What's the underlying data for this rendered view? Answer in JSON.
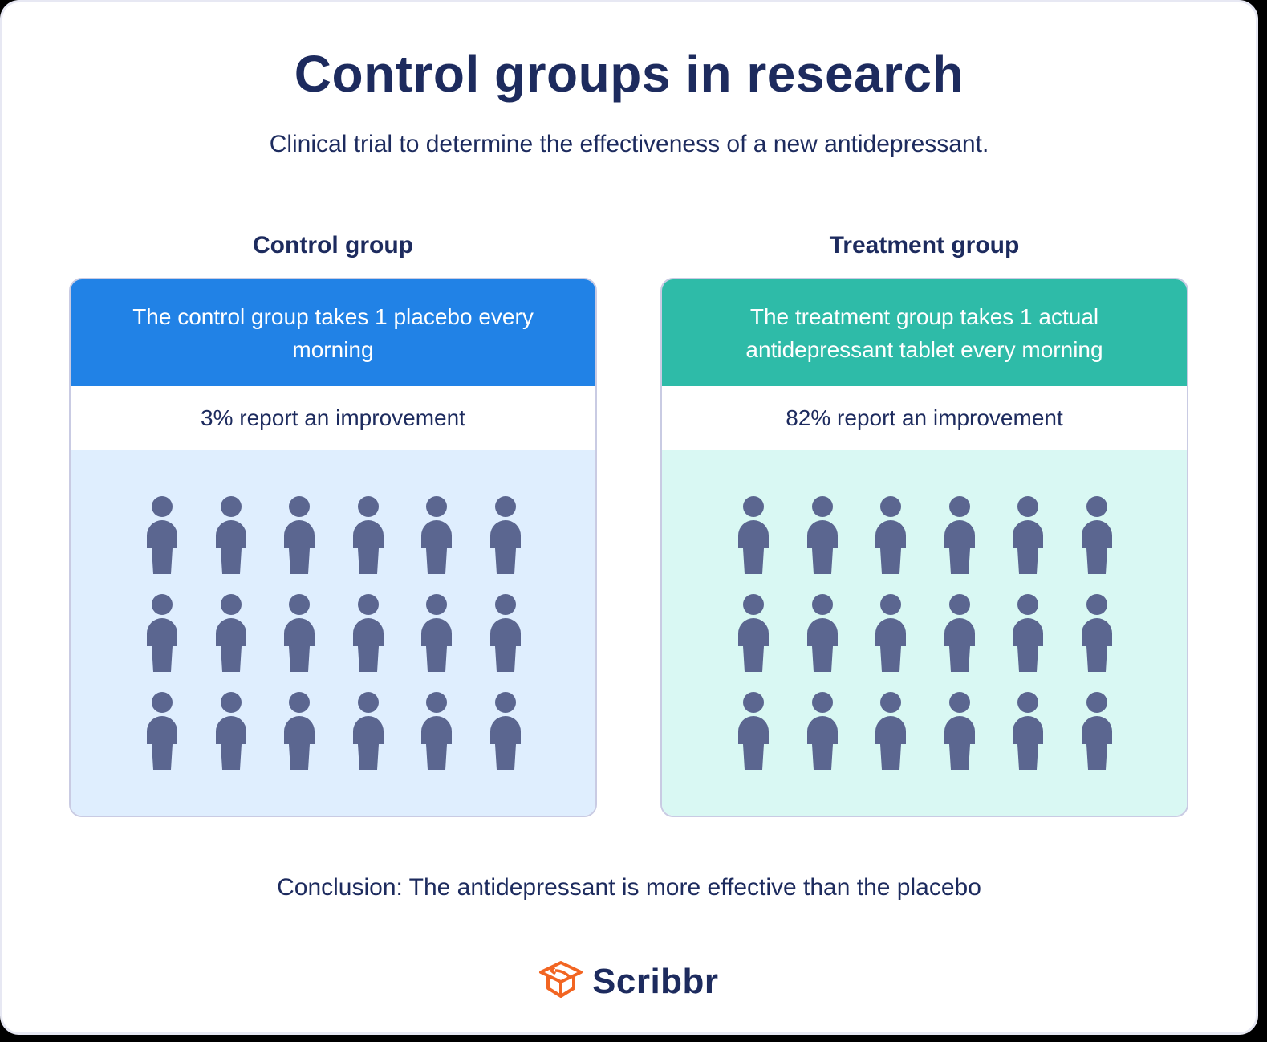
{
  "header": {
    "title": "Control groups in research",
    "subtitle": "Clinical trial to determine the effectiveness of a new antidepressant."
  },
  "groups": [
    {
      "label": "Control group",
      "description": "The control group takes 1 placebo every morning",
      "result": "3% report an improvement",
      "header_color": "#2182e6",
      "body_color": "#dfeefe",
      "people_count": 18,
      "people_rows": 3,
      "people_cols": 6
    },
    {
      "label": "Treatment group",
      "description": "The treatment group takes 1 actual antidepressant tablet every morning",
      "result": "82% report an improvement",
      "header_color": "#2ebba8",
      "body_color": "#d9f8f3",
      "people_count": 18,
      "people_rows": 3,
      "people_cols": 6
    }
  ],
  "conclusion": "Conclusion: The antidepressant is more effective than the placebo",
  "brand": {
    "name": "Scribbr",
    "icon": "graduation-cap-icon",
    "icon_color": "#f26522",
    "text_color": "#1d2b5e"
  },
  "colors": {
    "person_icon": "#5b6690",
    "text": "#1d2b5e",
    "panel_border": "#c9cbe3"
  }
}
